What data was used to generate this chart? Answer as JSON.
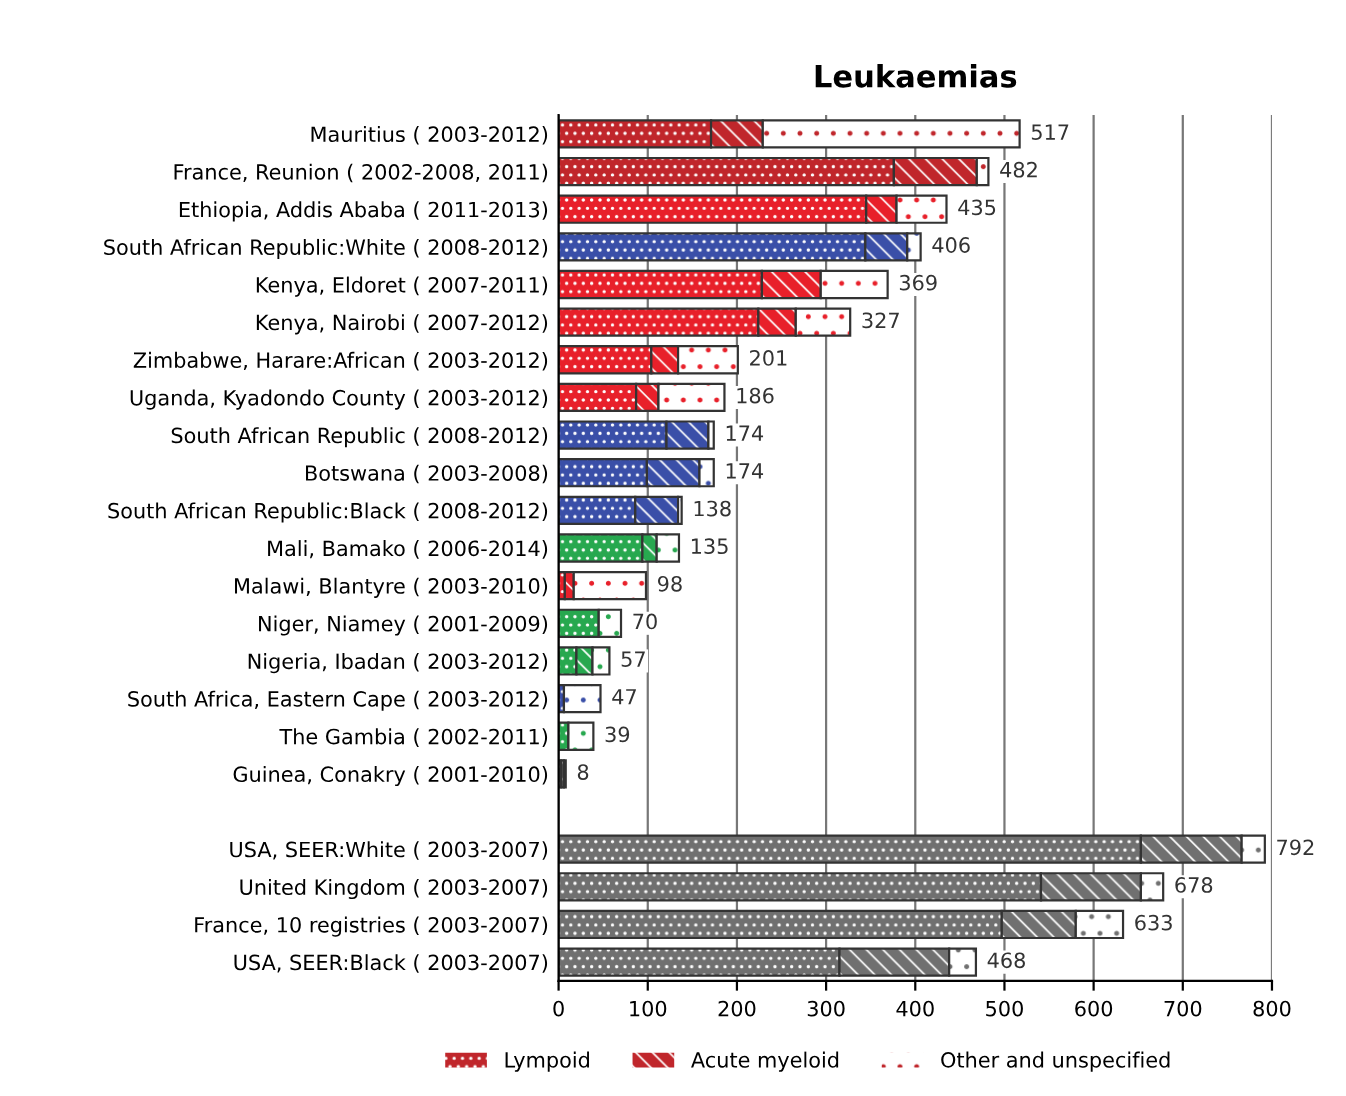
{
  "chart_data": {
    "type": "bar",
    "orientation": "horizontal",
    "stacked": true,
    "title": "Leukaemias",
    "categories": [
      "Mauritius ( 2003-2012)",
      "France, Reunion ( 2002-2008, 2011)",
      "Ethiopia, Addis Ababa ( 2011-2013)",
      "South African Republic:White ( 2008-2012)",
      "Kenya, Eldoret ( 2007-2011)",
      "Kenya, Nairobi ( 2007-2012)",
      "Zimbabwe, Harare:African ( 2003-2012)",
      "Uganda, Kyadondo County ( 2003-2012)",
      "South African Republic ( 2008-2012)",
      "Botswana ( 2003-2008)",
      "South African Republic:Black ( 2008-2012)",
      "Mali, Bamako ( 2006-2014)",
      "Malawi, Blantyre ( 2003-2010)",
      "Niger, Niamey ( 2001-2009)",
      "Nigeria, Ibadan ( 2003-2012)",
      "South Africa, Eastern Cape ( 2003-2012)",
      "The Gambia ( 2002-2011)",
      "Guinea, Conakry ( 2001-2010)",
      null,
      "USA, SEER:White ( 2003-2007)",
      "United Kingdom ( 2003-2007)",
      "France, 10 registries ( 2003-2007)",
      "USA, SEER:Black ( 2003-2007)"
    ],
    "series": [
      {
        "name": "Lympoid",
        "color": "#c0262b",
        "colors": [
          "#c0262b",
          "#c0262b",
          "#e8202a",
          "#3a4fa8",
          "#e8202a",
          "#e8202a",
          "#e8202a",
          "#e8202a",
          "#3a4fa8",
          "#3a4fa8",
          "#3a4fa8",
          "#27a84f",
          "#e8202a",
          "#27a84f",
          "#27a84f",
          "#3a4fa8",
          "#27a84f",
          "#707070",
          "#707070",
          "#707070",
          "#707070",
          "#707070",
          "#707070"
        ],
        "values": [
          171,
          376,
          345,
          344,
          228,
          224,
          104,
          87,
          121,
          99,
          86,
          94,
          7,
          45,
          20,
          6,
          11,
          3,
          null,
          653,
          541,
          497,
          315
        ]
      },
      {
        "name": "Acute myeloid",
        "color": "#c0262b",
        "colors": [
          "#c0262b",
          "#c0262b",
          "#e8202a",
          "#3a4fa8",
          "#e8202a",
          "#e8202a",
          "#e8202a",
          "#e8202a",
          "#3a4fa8",
          "#3a4fa8",
          "#3a4fa8",
          "#27a84f",
          "#e8202a",
          "#27a84f",
          "#27a84f",
          "#3a4fa8",
          "#27a84f",
          "#707070",
          "#707070",
          "#707070",
          "#707070",
          "#707070",
          "#707070"
        ],
        "values": [
          58,
          93,
          34,
          47,
          66,
          42,
          30,
          25,
          47,
          59,
          48,
          16,
          10,
          0,
          18,
          0,
          0,
          3,
          null,
          113,
          112,
          83,
          123
        ]
      },
      {
        "name": "Other and unspecified",
        "color": "#c0262b",
        "colors": [
          "#c0262b",
          "#c0262b",
          "#e8202a",
          "#3a4fa8",
          "#e8202a",
          "#e8202a",
          "#e8202a",
          "#e8202a",
          "#3a4fa8",
          "#3a4fa8",
          "#3a4fa8",
          "#27a84f",
          "#e8202a",
          "#27a84f",
          "#27a84f",
          "#3a4fa8",
          "#27a84f",
          "#707070",
          "#707070",
          "#707070",
          "#707070",
          "#707070",
          "#707070"
        ],
        "values": [
          288,
          13,
          56,
          15,
          75,
          61,
          67,
          74,
          6,
          16,
          4,
          25,
          81,
          25,
          19,
          41,
          28,
          2,
          null,
          26,
          25,
          53,
          30
        ]
      }
    ],
    "totals": [
      "517",
      "482",
      "435",
      "406",
      "369",
      "327",
      "201",
      "186",
      "174",
      "174",
      "138",
      "135",
      "98",
      "70",
      "57",
      "47",
      "39",
      "8",
      null,
      "792",
      "678",
      "633",
      "468"
    ],
    "xlim": [
      0,
      800
    ],
    "xticks": [
      0,
      100,
      200,
      300,
      400,
      500,
      600,
      700,
      800
    ],
    "grid": "x",
    "legend": "bottom"
  }
}
